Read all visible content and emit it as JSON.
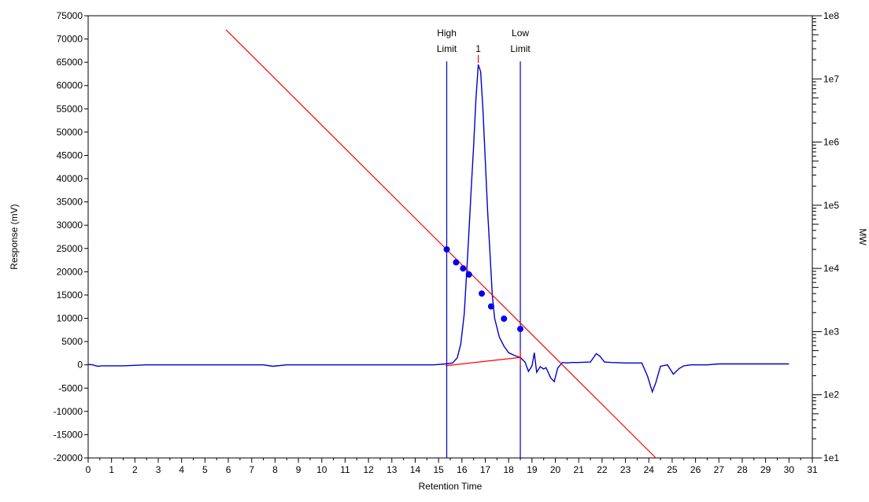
{
  "chart_data": {
    "type": "line",
    "x_label": "Retention Time",
    "y_label": "Response (mV)",
    "y2_label": "MW",
    "x_range": [
      0,
      31
    ],
    "y_range": [
      -20000,
      75000
    ],
    "y2_range": [
      10,
      100000000
    ],
    "y2_scale": "log",
    "grid": false,
    "x_ticks": [
      "0",
      "1",
      "2",
      "3",
      "4",
      "5",
      "6",
      "7",
      "8",
      "9",
      "10",
      "11",
      "12",
      "13",
      "14",
      "15",
      "16",
      "17",
      "18",
      "19",
      "20",
      "21",
      "22",
      "23",
      "24",
      "25",
      "26",
      "27",
      "28",
      "29",
      "30",
      "31"
    ],
    "y_ticks": [
      "75000",
      "70000",
      "65000",
      "60000",
      "55000",
      "50000",
      "45000",
      "40000",
      "35000",
      "30000",
      "25000",
      "20000",
      "15000",
      "10000",
      "5000",
      "0",
      "-5000",
      "-10000",
      "-15000",
      "-20000"
    ],
    "y2_ticks": [
      "1e8",
      "1e7",
      "1e6",
      "1e5",
      "1e4",
      "1e3",
      "1e2",
      "1e1"
    ],
    "colors": {
      "trace": "#0000cc",
      "calibration": "#ff0000",
      "limits": "#0000cc",
      "points": "#0000ee"
    },
    "series": [
      {
        "kind": "chromatogram",
        "x": [
          0,
          0.2,
          0.4,
          0.6,
          1.5,
          2.5,
          4,
          6,
          7.5,
          7.9,
          8.5,
          10,
          12,
          14,
          14.8,
          15.3,
          15.6,
          15.8,
          15.95,
          16.1,
          16.25,
          16.4,
          16.5,
          16.6,
          16.7,
          16.8,
          16.9,
          17.0,
          17.1,
          17.2,
          17.3,
          17.4,
          17.6,
          17.8,
          18.0,
          18.3,
          18.5,
          18.7,
          18.85,
          19.0,
          19.1,
          19.2,
          19.35,
          19.5,
          19.6,
          19.8,
          19.95,
          20.1,
          20.3,
          20.5,
          20.7,
          21.0,
          21.5,
          21.75,
          21.9,
          22.1,
          22.4,
          23,
          23.7,
          23.95,
          24.15,
          24.3,
          24.5,
          24.8,
          25.05,
          25.3,
          25.5,
          25.8,
          26.5,
          27,
          28,
          30
        ],
        "y": [
          100,
          0,
          -300,
          -200,
          -200,
          0,
          0,
          0,
          0,
          -300,
          0,
          0,
          0,
          0,
          0,
          200,
          400,
          1500,
          4500,
          11000,
          24000,
          38000,
          47000,
          57000,
          64500,
          63000,
          55000,
          44000,
          33000,
          24000,
          15000,
          10000,
          6000,
          4000,
          2600,
          1900,
          1600,
          600,
          -1400,
          -200,
          2600,
          -1600,
          -400,
          -900,
          -600,
          -2800,
          -3600,
          -700,
          500,
          400,
          500,
          500,
          600,
          2400,
          1900,
          600,
          500,
          400,
          400,
          -2500,
          -5800,
          -3800,
          -300,
          0,
          -2000,
          -800,
          -200,
          0,
          0,
          200,
          200,
          200
        ]
      },
      {
        "kind": "calibration-line",
        "x": [
          5.9,
          24.3
        ],
        "mw": [
          60000000,
          10
        ]
      },
      {
        "kind": "calibration-points",
        "x": [
          15.35,
          15.75,
          16.05,
          16.3,
          16.85,
          17.25,
          17.8,
          18.5
        ],
        "mw": [
          20000,
          12500,
          10000,
          8000,
          4000,
          2500,
          1600,
          1100
        ]
      },
      {
        "kind": "baseline",
        "x": [
          15.3,
          18.5
        ],
        "y": [
          -200,
          1600
        ]
      }
    ],
    "annotations": {
      "high_limit": {
        "x": 15.35,
        "line1": "High",
        "line2": "Limit"
      },
      "low_limit": {
        "x": 18.5,
        "line1": "Low",
        "line2": "Limit"
      },
      "peak": {
        "x": 16.7,
        "label": "1"
      }
    }
  }
}
